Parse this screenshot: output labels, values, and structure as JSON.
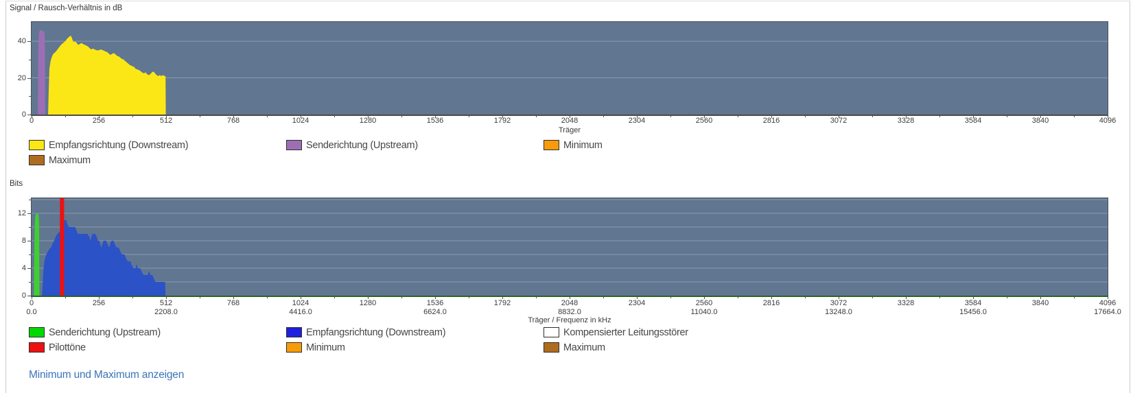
{
  "page": {
    "footer_link": "Minimum und Maximum anzeigen"
  },
  "chart_data": [
    {
      "type": "area",
      "title": "Signal / Rausch-Verhältnis in dB",
      "xlabel": "Träger",
      "xlim": [
        0,
        4096
      ],
      "ylim": [
        0,
        50.5
      ],
      "yticks": [
        0,
        20,
        40
      ],
      "y_minor_ticks": [
        10,
        30
      ],
      "grid_y": [
        20,
        40
      ],
      "xticks": [
        0,
        256,
        512,
        768,
        1024,
        1280,
        1536,
        1792,
        2048,
        2304,
        2560,
        2816,
        3072,
        3328,
        3584,
        3840,
        4096
      ],
      "x_minor_step": 128,
      "colors": {
        "plot_bg": "#617691",
        "grid": "rgba(255,255,255,0.28)",
        "axis": "#4c4b45"
      },
      "series": [
        {
          "name": "Senderichtung (Upstream)",
          "color": "#9c6fb5",
          "points": [
            [
              24,
              0
            ],
            [
              25,
              30
            ],
            [
              26,
              40
            ],
            [
              28,
              44
            ],
            [
              30,
              45.5
            ],
            [
              34,
              46
            ],
            [
              40,
              46
            ],
            [
              44,
              45.5
            ],
            [
              48,
              45
            ],
            [
              50,
              44
            ],
            [
              51,
              35
            ],
            [
              52,
              0
            ]
          ]
        },
        {
          "name": "Empfangsrichtung (Downstream)",
          "color": "#fce716",
          "points": [
            [
              63,
              0
            ],
            [
              65,
              12
            ],
            [
              68,
              25
            ],
            [
              72,
              29
            ],
            [
              76,
              31
            ],
            [
              82,
              33
            ],
            [
              90,
              34
            ],
            [
              96,
              35
            ],
            [
              104,
              36.5
            ],
            [
              112,
              38
            ],
            [
              120,
              39
            ],
            [
              128,
              40
            ],
            [
              136,
              41.5
            ],
            [
              144,
              42.5
            ],
            [
              150,
              43
            ],
            [
              154,
              41.5
            ],
            [
              158,
              40
            ],
            [
              162,
              39.5
            ],
            [
              166,
              40
            ],
            [
              172,
              39
            ],
            [
              178,
              38
            ],
            [
              184,
              38.5
            ],
            [
              190,
              39
            ],
            [
              196,
              38.5
            ],
            [
              202,
              38
            ],
            [
              210,
              37.5
            ],
            [
              216,
              37
            ],
            [
              222,
              36
            ],
            [
              228,
              35.5
            ],
            [
              234,
              36
            ],
            [
              240,
              35.5
            ],
            [
              248,
              35
            ],
            [
              256,
              35
            ],
            [
              264,
              35.5
            ],
            [
              272,
              35
            ],
            [
              280,
              34.5
            ],
            [
              288,
              34
            ],
            [
              296,
              33
            ],
            [
              300,
              32.5
            ],
            [
              306,
              33
            ],
            [
              312,
              33.5
            ],
            [
              318,
              33
            ],
            [
              326,
              32
            ],
            [
              334,
              31.5
            ],
            [
              342,
              30.5
            ],
            [
              350,
              30
            ],
            [
              358,
              29
            ],
            [
              366,
              28
            ],
            [
              374,
              27
            ],
            [
              382,
              26.5
            ],
            [
              390,
              26
            ],
            [
              396,
              25
            ],
            [
              404,
              24.5
            ],
            [
              412,
              24
            ],
            [
              420,
              23
            ],
            [
              428,
              22.5
            ],
            [
              434,
              23
            ],
            [
              440,
              22
            ],
            [
              446,
              21.5
            ],
            [
              452,
              22
            ],
            [
              458,
              23
            ],
            [
              464,
              23.5
            ],
            [
              470,
              22.5
            ],
            [
              476,
              21.5
            ],
            [
              482,
              21
            ],
            [
              488,
              21.5
            ],
            [
              494,
              21
            ],
            [
              500,
              21.5
            ],
            [
              506,
              21
            ],
            [
              510,
              21
            ],
            [
              511,
              0
            ]
          ]
        }
      ],
      "legend": [
        {
          "label": "Empfangsrichtung (Downstream)",
          "color": "#fce716"
        },
        {
          "label": "Senderichtung (Upstream)",
          "color": "#9c6fb5"
        },
        {
          "label": "Minimum",
          "color": "#f79b0b"
        },
        {
          "label": "Maximum",
          "color": "#af6c1f"
        }
      ]
    },
    {
      "type": "area",
      "title": "Bits",
      "xlabel": "Träger / Frequenz in kHz",
      "xlim": [
        0,
        4096
      ],
      "ylim": [
        0,
        14.2
      ],
      "yticks": [
        0,
        4,
        8,
        12
      ],
      "y_minor_ticks": [
        2,
        6,
        10,
        14
      ],
      "grid_y": [
        2,
        4,
        6,
        8,
        10,
        12,
        14
      ],
      "xticks": [
        0,
        256,
        512,
        768,
        1024,
        1280,
        1536,
        1792,
        2048,
        2304,
        2560,
        2816,
        3072,
        3328,
        3584,
        3840,
        4096
      ],
      "x_minor_step": 128,
      "x2_ticks": {
        "carriers": [
          0,
          512,
          1024,
          1536,
          2048,
          2560,
          3072,
          3584,
          4096
        ],
        "labels": [
          "0.0",
          "2208.0",
          "4416.0",
          "6624.0",
          "8832.0",
          "11040.0",
          "13248.0",
          "15456.0",
          "17664.0"
        ]
      },
      "colors": {
        "plot_bg": "#617691",
        "grid": "rgba(255,255,255,0.28)",
        "axis": "#266326"
      },
      "series": [
        {
          "name": "Senderichtung (Upstream)",
          "color": "#3fcf2f",
          "points": [
            [
              9,
              0
            ],
            [
              10,
              5
            ],
            [
              11,
              8
            ],
            [
              12,
              10
            ],
            [
              13,
              11
            ],
            [
              15,
              11.6
            ],
            [
              18,
              11.9
            ],
            [
              21,
              12
            ],
            [
              24,
              12
            ],
            [
              26,
              11.8
            ],
            [
              28,
              11.2
            ],
            [
              29,
              9
            ],
            [
              30,
              0
            ]
          ]
        },
        {
          "name": "Empfangsrichtung (Downstream)",
          "color": "#2b52c7",
          "points": [
            [
              40,
              0
            ],
            [
              42,
              1.5
            ],
            [
              44,
              3
            ],
            [
              47,
              4.5
            ],
            [
              50,
              5.2
            ],
            [
              54,
              5.8
            ],
            [
              60,
              6.3
            ],
            [
              66,
              6.7
            ],
            [
              74,
              7
            ],
            [
              80,
              7.6
            ],
            [
              86,
              8
            ],
            [
              92,
              8.6
            ],
            [
              98,
              9
            ],
            [
              104,
              9.2
            ],
            [
              110,
              9.4
            ],
            [
              114,
              9.6
            ],
            [
              118,
              10.2
            ],
            [
              122,
              10.8
            ],
            [
              126,
              11
            ],
            [
              132,
              11
            ],
            [
              136,
              10.4
            ],
            [
              142,
              10
            ],
            [
              158,
              10
            ],
            [
              166,
              10
            ],
            [
              170,
              9.6
            ],
            [
              176,
              9
            ],
            [
              192,
              9
            ],
            [
              212,
              9
            ],
            [
              220,
              8.6
            ],
            [
              224,
              8
            ],
            [
              228,
              8.6
            ],
            [
              232,
              9
            ],
            [
              242,
              9
            ],
            [
              248,
              8.6
            ],
            [
              252,
              8
            ],
            [
              258,
              8
            ],
            [
              262,
              7.4
            ],
            [
              266,
              7
            ],
            [
              270,
              7.6
            ],
            [
              274,
              8
            ],
            [
              284,
              8
            ],
            [
              290,
              7.4
            ],
            [
              296,
              7
            ],
            [
              300,
              7.6
            ],
            [
              304,
              8
            ],
            [
              312,
              8
            ],
            [
              318,
              7.4
            ],
            [
              324,
              7
            ],
            [
              332,
              7
            ],
            [
              338,
              6.4
            ],
            [
              344,
              6
            ],
            [
              354,
              6
            ],
            [
              360,
              5.4
            ],
            [
              366,
              5
            ],
            [
              376,
              5
            ],
            [
              382,
              4.4
            ],
            [
              388,
              4
            ],
            [
              396,
              4
            ],
            [
              400,
              4.6
            ],
            [
              404,
              4
            ],
            [
              414,
              4
            ],
            [
              420,
              3.4
            ],
            [
              426,
              3
            ],
            [
              442,
              3
            ],
            [
              448,
              3.6
            ],
            [
              452,
              3
            ],
            [
              460,
              3
            ],
            [
              466,
              2.4
            ],
            [
              472,
              2
            ],
            [
              490,
              2
            ],
            [
              508,
              2
            ],
            [
              510,
              0
            ]
          ]
        }
      ],
      "pilot": {
        "name": "Pilottöne",
        "color": "#ee1111",
        "from": 108,
        "to": 124
      },
      "legend": [
        {
          "label": "Senderichtung (Upstream)",
          "color": "#00d800"
        },
        {
          "label": "Empfangsrichtung (Downstream)",
          "color": "#1f1fe0"
        },
        {
          "label": "Kompensierter Leitungsstörer",
          "color": "#ffffff"
        },
        {
          "label": "Pilottöne",
          "color": "#ee1111"
        },
        {
          "label": "Minimum",
          "color": "#f79b0b"
        },
        {
          "label": "Maximum",
          "color": "#af6c1f"
        }
      ]
    }
  ]
}
